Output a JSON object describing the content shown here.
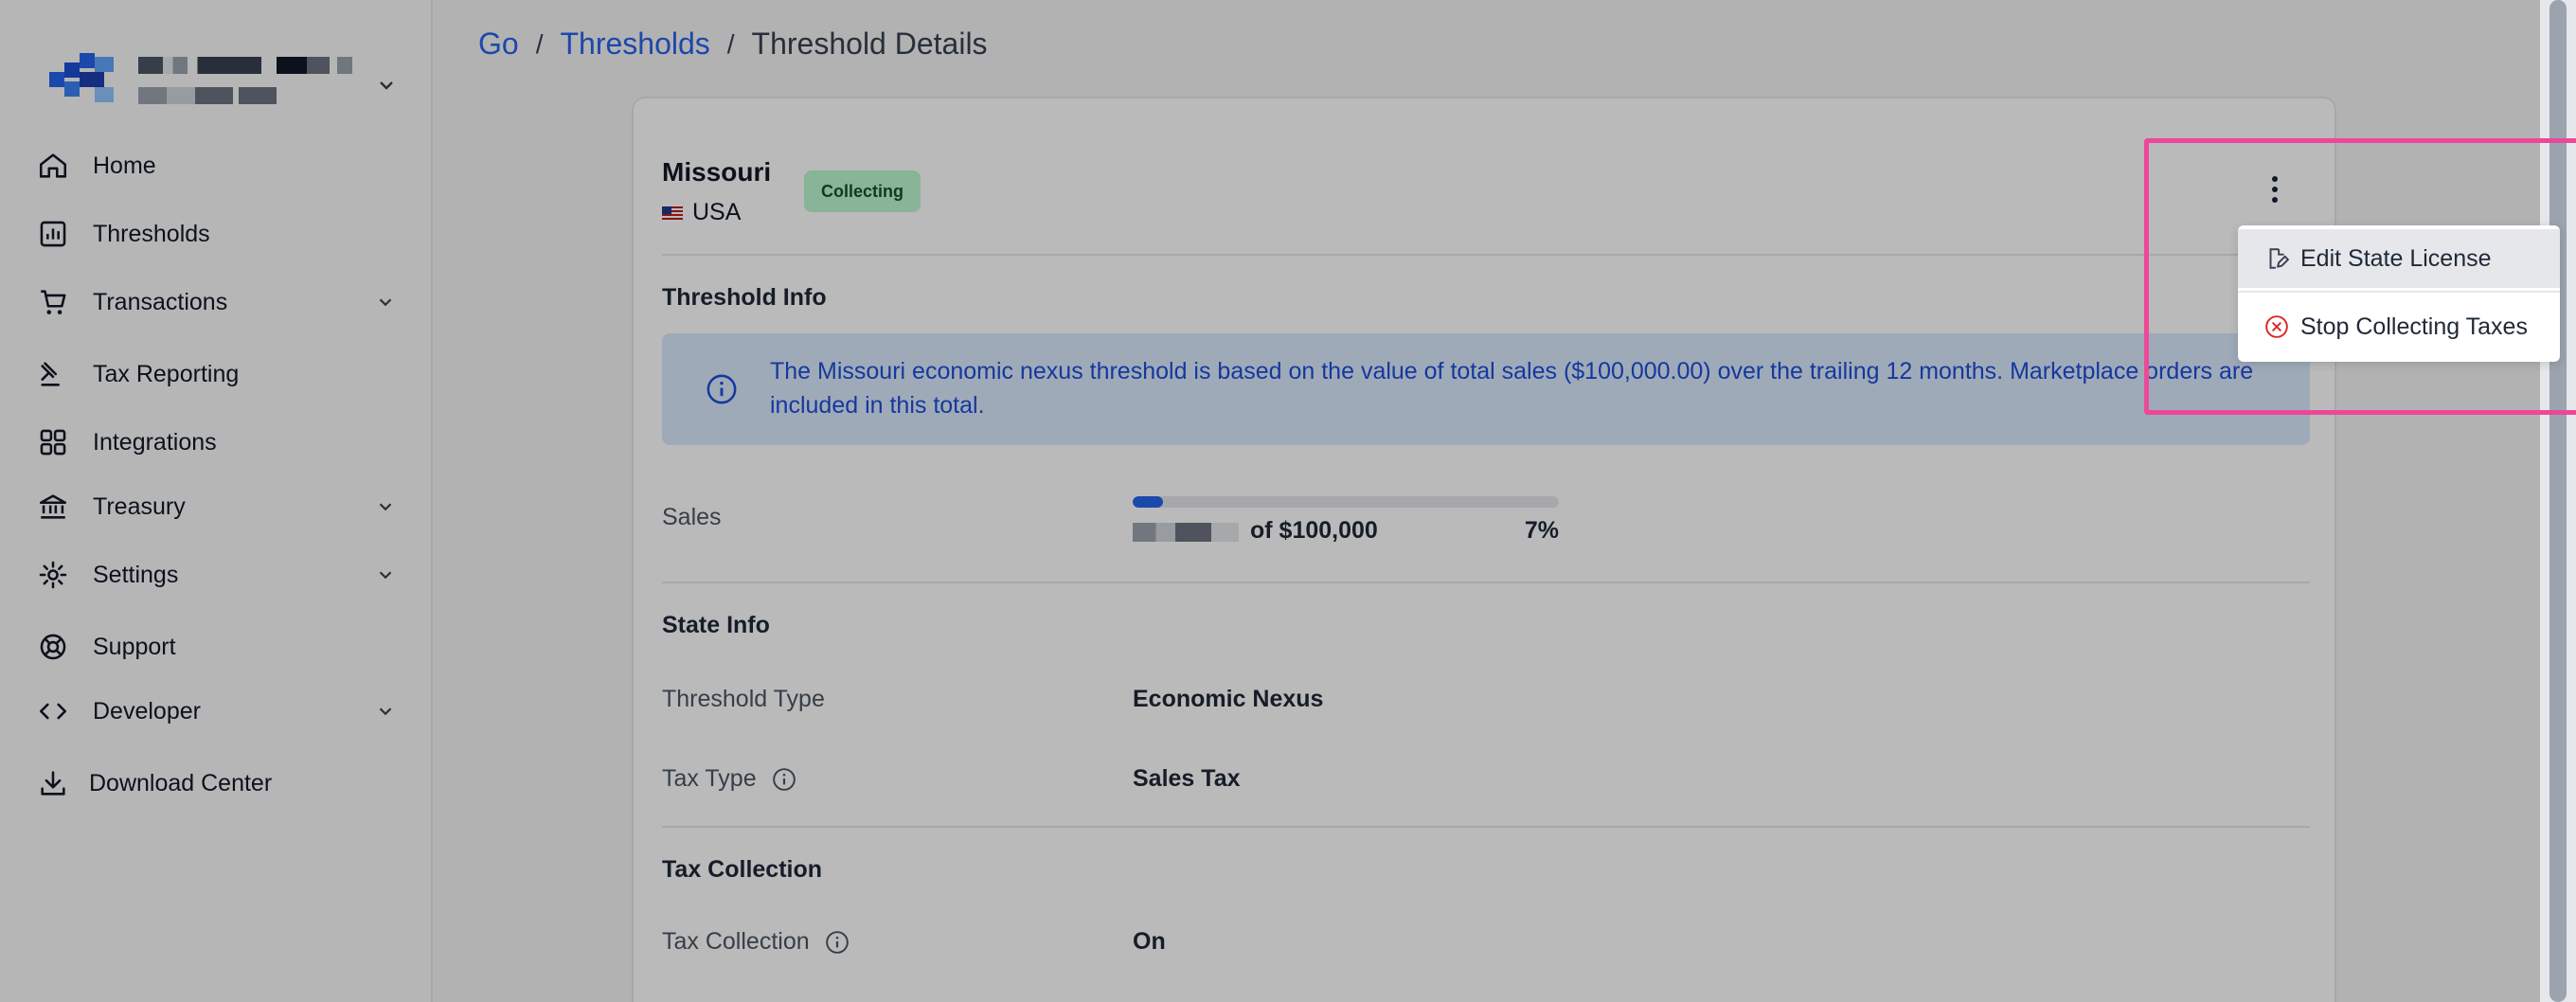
{
  "sidebar": {
    "items": [
      {
        "label": "Home",
        "icon": "home-icon",
        "has_dropdown": false
      },
      {
        "label": "Thresholds",
        "icon": "chart-icon",
        "has_dropdown": false
      },
      {
        "label": "Transactions",
        "icon": "cart-icon",
        "has_dropdown": true
      },
      {
        "label": "Tax Reporting",
        "icon": "gavel-icon",
        "has_dropdown": false
      },
      {
        "label": "Integrations",
        "icon": "grid-icon",
        "has_dropdown": false
      },
      {
        "label": "Treasury",
        "icon": "bank-icon",
        "has_dropdown": true
      },
      {
        "label": "Settings",
        "icon": "gear-icon",
        "has_dropdown": true
      },
      {
        "label": "Support",
        "icon": "lifebuoy-icon",
        "has_dropdown": false
      },
      {
        "label": "Developer",
        "icon": "code-icon",
        "has_dropdown": true
      },
      {
        "label": "Download Center",
        "icon": "download-icon",
        "has_dropdown": false
      }
    ]
  },
  "breadcrumb": {
    "root": "Go",
    "section": "Thresholds",
    "current": "Threshold Details",
    "separator": "/"
  },
  "header": {
    "state_name": "Missouri",
    "country": "USA",
    "status_badge": "Collecting"
  },
  "threshold_info": {
    "title": "Threshold Info",
    "notice": "The Missouri economic nexus threshold is based on the value of total sales ($100,000.00) over the trailing 12 months. Marketplace orders are included in this total.",
    "sales_label": "Sales",
    "sales_of": "of $100,000",
    "sales_percent_text": "7%",
    "sales_progress_fraction": 0.07
  },
  "state_info": {
    "title": "State Info",
    "threshold_type_label": "Threshold Type",
    "threshold_type_value": "Economic Nexus",
    "tax_type_label": "Tax Type",
    "tax_type_value": "Sales Tax"
  },
  "tax_collection": {
    "title": "Tax Collection",
    "label": "Tax Collection",
    "value": "On"
  },
  "actions_menu": {
    "items": [
      {
        "label": "Edit State License",
        "icon": "edit-document-icon"
      },
      {
        "label": "Stop Collecting Taxes",
        "icon": "x-circle-icon"
      }
    ]
  },
  "colors": {
    "accent": "#2563eb",
    "badge_bg": "#bbf7d0",
    "danger": "#dc2626",
    "highlight": "#ec4899"
  }
}
